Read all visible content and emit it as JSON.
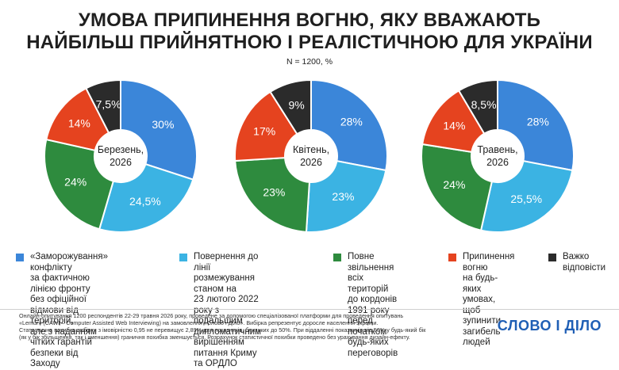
{
  "title_line1": "УМОВА ПРИПИНЕННЯ ВОГНЮ, ЯКУ ВВАЖАЮТЬ",
  "title_line2": "НАЙБІЛЬШ ПРИЙНЯТНОЮ І РЕАЛІСТИЧНОЮ ДЛЯ УКРАЇНИ",
  "subtitle": "N = 1200, %",
  "legend": [
    {
      "label_lines": [
        "«Заморожування» конфлікту",
        "за фактичною лінією фронту",
        "без офіційної відмови від територій,",
        "але з наданням чітких гарантій",
        "безпеки від Заходу"
      ],
      "color": "#3b86d9"
    },
    {
      "label_lines": [
        "Повернення до лінії",
        "розмежування станом на",
        "23 лютого 2022 року з подальшим",
        "дипломатичним вирішенням",
        "питання Криму та ОРДЛО"
      ],
      "color": "#3bb3e3"
    },
    {
      "label_lines": [
        "Повне звільнення всіх",
        "територій до кордонів",
        "1991 року перед",
        "початком будь-яких",
        "переговорів"
      ],
      "color": "#2e8b3e"
    },
    {
      "label_lines": [
        "Припинення вогню",
        "на будь-яких умовах,",
        "щоб зупинити",
        "загибель людей"
      ],
      "color": "#e5431f"
    },
    {
      "label_lines": [
        "Важко",
        "відповісти"
      ],
      "color": "#2b2b2b"
    }
  ],
  "chart_data": [
    {
      "type": "pie",
      "center_label": [
        "Березень,",
        "2026"
      ],
      "categories": [
        "«Заморожування» конфлікту",
        "Повернення до лінії розмежування",
        "Повне звільнення всіх територій",
        "Припинення вогню",
        "Важко відповісти"
      ],
      "values": [
        30,
        24.5,
        24,
        14,
        7.5
      ],
      "value_labels": [
        "30%",
        "24,5%",
        "24%",
        "14%",
        "7,5%"
      ],
      "colors": [
        "#3b86d9",
        "#3bb3e3",
        "#2e8b3e",
        "#e5431f",
        "#2b2b2b"
      ]
    },
    {
      "type": "pie",
      "center_label": [
        "Квітень,",
        "2026"
      ],
      "categories": [
        "«Заморожування» конфлікту",
        "Повернення до лінії розмежування",
        "Повне звільнення всіх територій",
        "Припинення вогню",
        "Важко відповісти"
      ],
      "values": [
        28,
        23,
        23,
        17,
        9
      ],
      "value_labels": [
        "28%",
        "23%",
        "23%",
        "17%",
        "9%"
      ],
      "colors": [
        "#3b86d9",
        "#3bb3e3",
        "#2e8b3e",
        "#e5431f",
        "#2b2b2b"
      ]
    },
    {
      "type": "pie",
      "center_label": [
        "Травень,",
        "2026"
      ],
      "categories": [
        "«Заморожування» конфлікту",
        "Повернення до лінії розмежування",
        "Повне звільнення всіх територій",
        "Припинення вогню",
        "Важко відповісти"
      ],
      "values": [
        28,
        25.5,
        24,
        14,
        8.5
      ],
      "value_labels": [
        "28%",
        "25,5%",
        "24%",
        "14%",
        "8,5%"
      ],
      "colors": [
        "#3b86d9",
        "#3bb3e3",
        "#2e8b3e",
        "#e5431f",
        "#2b2b2b"
      ]
    }
  ],
  "footer_lines": [
    "Онлайн-опитування 1200 респондентів 22-29 травня 2026 року, проведене за допомогою спеціалізованої платформи для проведення опитувань",
    "«Lemur» (CAWI – Computer Assisted Web Interviewing) на замовлення «Слово і Діло». Вибірка репрезентує доросле населення України.",
    "Статистична похибка вибірки з імовірністю 0,95 не перевищує 2,89% для показників, близьких до 50%. При віддаленні показників від 50% у будь-який бік",
    "(як у бік збільшення, так і зменшення) граничня похибка зменшується. Розрахунок статистичної похибки проведено без урахування дизайн-ефекту."
  ],
  "logo_text": "СЛОВО І ДІЛО"
}
